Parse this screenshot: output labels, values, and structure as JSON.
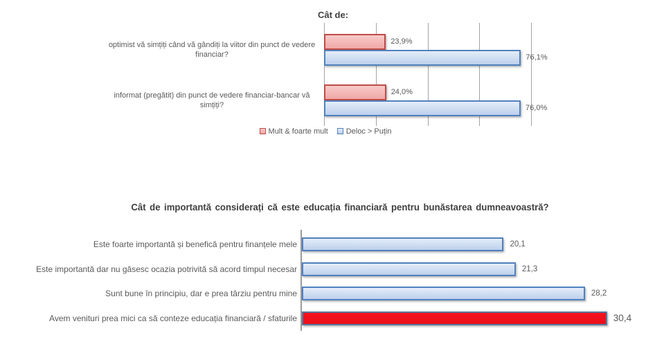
{
  "page": {
    "background": "#FFFFFF"
  },
  "styles": {
    "pink": {
      "fill_top": "#F8CAC8",
      "fill_bottom": "#F0A8A6",
      "border": "#BE4B48"
    },
    "blue": {
      "fill_top": "#E4EDF9",
      "fill_bottom": "#BDD0EC",
      "border": "#4F81BD"
    },
    "red": {
      "fill_top": "#F7111D",
      "fill_bottom": "#EB0F1A",
      "border": "#54779F"
    }
  },
  "text_colors": {
    "title": "#3F3F3F",
    "label": "#595959",
    "value": "#595959",
    "gridline": "#A3A3A3",
    "axis": "#9B9B9B"
  },
  "chart_data": [
    {
      "type": "bar",
      "orientation": "horizontal",
      "title": "Cât de:",
      "categories": [
        "optimist vă simțiți când vă gândiți la viitor din punct de vedere financiar?",
        "informat (pregătit) din punct de vedere financiar-bancar vă simțiți?"
      ],
      "series": [
        {
          "name": "Mult & foarte mult",
          "style": "pink",
          "values": [
            23.9,
            24.0
          ],
          "value_labels": [
            "23,9%",
            "24,0%"
          ]
        },
        {
          "name": "Deloc > Puțin",
          "style": "blue",
          "values": [
            76.1,
            76.0
          ],
          "value_labels": [
            "76,1%",
            "76,0%"
          ]
        }
      ],
      "xlim": [
        0,
        80
      ],
      "gridline_step": 20,
      "grid": true,
      "legend_position": "bottom"
    },
    {
      "type": "bar",
      "orientation": "horizontal",
      "title": "Cât de importantă considerați că este educația financiară pentru bunăstarea dumneavoastră?",
      "categories": [
        "Este foarte importantă și benefică pentru finanțele mele",
        "Este importantă dar nu găsesc ocazia potrivită să acord timpul necesar",
        "Sunt bune în principiu, dar e prea târziu pentru mine",
        "Avem venituri prea mici ca să conteze educația financiară / sfaturile"
      ],
      "values": [
        20.1,
        21.3,
        28.2,
        30.4
      ],
      "value_labels": [
        "20,1",
        "21,3",
        "28,2",
        "30,4"
      ],
      "bar_styles": [
        "blue",
        "blue",
        "blue",
        "red"
      ],
      "highlight_index": 3,
      "xlim": [
        0,
        35
      ],
      "grid": false,
      "legend_position": "none"
    }
  ]
}
